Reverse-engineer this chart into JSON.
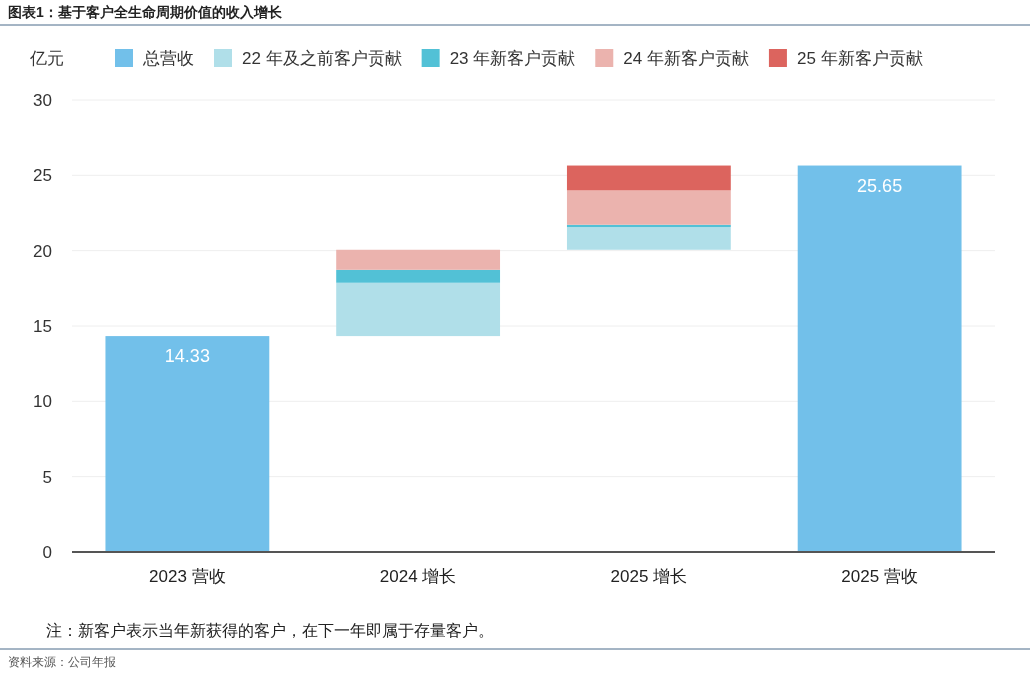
{
  "chart_data": {
    "type": "bar",
    "title": "图表1：基于客户全生命周期价值的收入增长",
    "ylabel": "亿元",
    "categories": [
      "2023 营收",
      "2024 增长",
      "2025 增长",
      "2025 营收"
    ],
    "series": [
      {
        "name": "总营收",
        "color": "#72c0ea",
        "values": [
          14.33,
          null,
          null,
          25.65
        ],
        "value_labels": [
          "14.33",
          null,
          null,
          "25.65"
        ]
      },
      {
        "name": "22 年及之前客户贡献",
        "color": "#b0dfe9",
        "values": [
          null,
          3.54,
          1.51,
          null
        ],
        "base": [
          null,
          14.33,
          20.06,
          null
        ]
      },
      {
        "name": "23 年新客户贡献",
        "color": "#52c1d6",
        "values": [
          null,
          0.86,
          0.15,
          null
        ],
        "base": [
          null,
          17.87,
          21.57,
          null
        ]
      },
      {
        "name": "24 年新客户贡献",
        "color": "#ebb3ae",
        "values": [
          null,
          1.33,
          2.28,
          null
        ],
        "base": [
          null,
          18.73,
          21.72,
          null
        ]
      },
      {
        "name": "25 年新客户贡献",
        "color": "#dc645e",
        "values": [
          null,
          null,
          1.65,
          null
        ],
        "base": [
          null,
          null,
          24.0,
          null
        ]
      }
    ],
    "ylim": [
      0,
      30
    ],
    "yticks": [
      0,
      5,
      10,
      15,
      20,
      25,
      30
    ],
    "grid": "y",
    "legend": "top",
    "annotations": [
      "注：新客户表示当年新获得的客户，在下一年即属于存量客户。",
      "资料来源：公司年报"
    ]
  }
}
